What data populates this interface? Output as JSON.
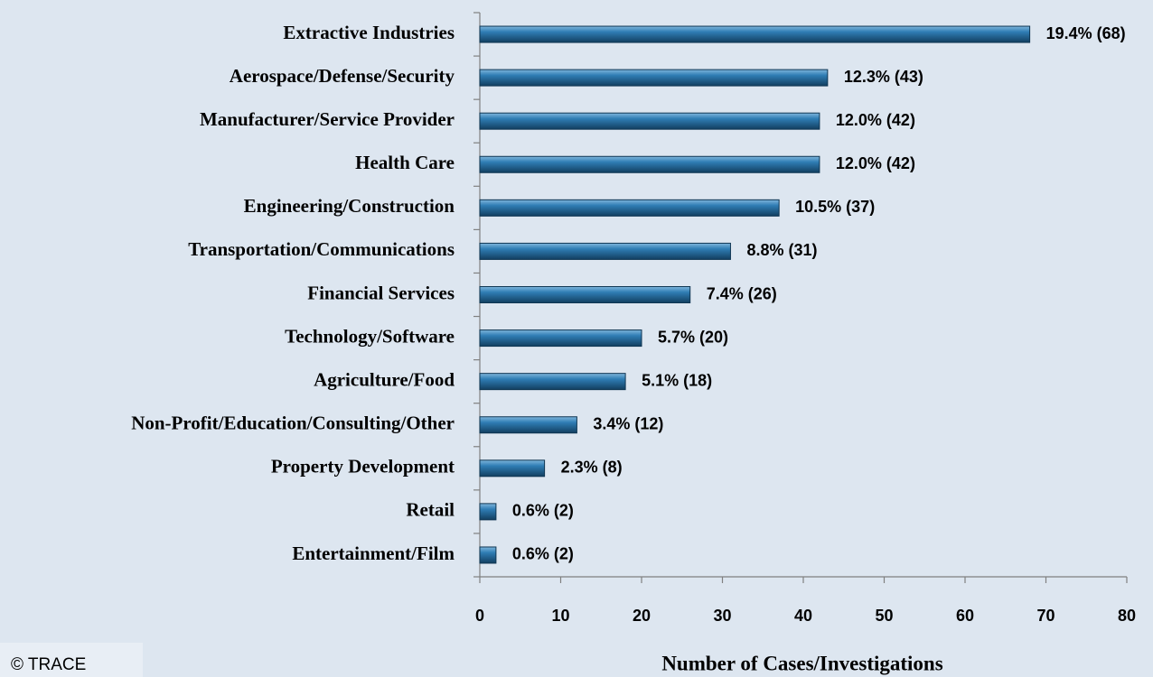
{
  "chart_data": {
    "type": "barh",
    "xlabel": "Number of Cases/Investigations",
    "annotation": "© TRACE",
    "categories": [
      "Extractive Industries",
      "Aerospace/Defense/Security",
      "Manufacturer/Service Provider",
      "Health Care",
      "Engineering/Construction",
      "Transportation/Communications",
      "Financial Services",
      "Technology/Software",
      "Agriculture/Food",
      "Non-Profit/Education/Consulting/Other",
      "Property Development",
      "Retail",
      "Entertainment/Film"
    ],
    "values": [
      68,
      43,
      42,
      42,
      37,
      31,
      26,
      20,
      18,
      12,
      8,
      2,
      2
    ],
    "value_labels": [
      "19.4% (68)",
      "12.3% (43)",
      "12.0% (42)",
      "12.0% (42)",
      "10.5% (37)",
      "8.8% (31)",
      "7.4% (26)",
      "5.7% (20)",
      "5.1% (18)",
      "3.4% (12)",
      "2.3% (8)",
      "0.6% (2)",
      "0.6% (2)"
    ],
    "color": "#1f6391",
    "xlim": [
      0,
      80
    ],
    "xticks": [
      0,
      10,
      20,
      30,
      40,
      50,
      60,
      70,
      80
    ],
    "grid": false
  }
}
